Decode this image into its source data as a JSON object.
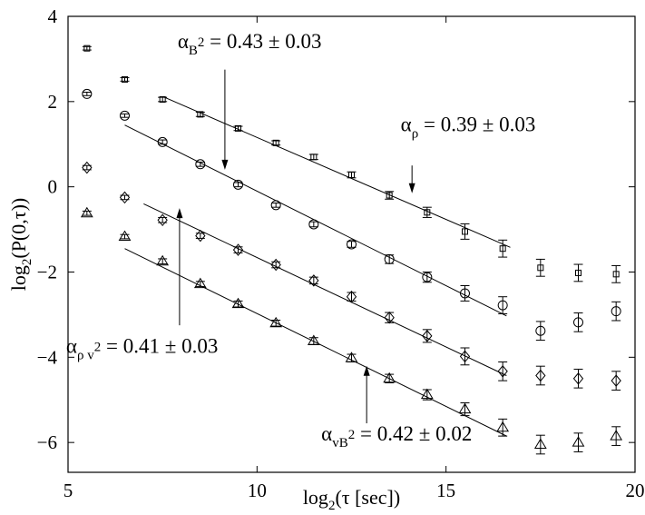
{
  "chart_data": {
    "type": "scatter",
    "title": "",
    "xlabel": "log2(τ [sec])",
    "ylabel": "log2(P(0,τ))",
    "xlim": [
      5,
      20
    ],
    "ylim": [
      -6.7,
      4
    ],
    "xticks": [
      5,
      10,
      15,
      20
    ],
    "yticks": [
      -6,
      -4,
      -2,
      0,
      2,
      4
    ],
    "grid": false,
    "legend": "none",
    "series": [
      {
        "marker": "square",
        "x": [
          5.5,
          6.5,
          7.5,
          8.5,
          9.5,
          10.5,
          11.5,
          12.5,
          13.5,
          14.5,
          15.5,
          16.5,
          17.5,
          18.5,
          19.5
        ],
        "y": [
          3.25,
          2.52,
          2.05,
          1.7,
          1.37,
          1.03,
          0.7,
          0.28,
          -0.2,
          -0.6,
          -1.05,
          -1.45,
          -1.9,
          -2.02,
          -2.05
        ],
        "err": [
          0.04,
          0.04,
          0.05,
          0.05,
          0.05,
          0.05,
          0.06,
          0.07,
          0.09,
          0.12,
          0.18,
          0.2,
          0.2,
          0.2,
          0.2
        ],
        "fit": {
          "x": [
            7.5,
            16.7
          ],
          "y": [
            2.12,
            -1.42
          ]
        }
      },
      {
        "marker": "circle",
        "x": [
          5.5,
          6.5,
          7.5,
          8.5,
          9.5,
          10.5,
          11.5,
          12.5,
          13.5,
          14.5,
          15.5,
          16.5,
          17.5,
          18.5,
          19.5
        ],
        "y": [
          2.18,
          1.67,
          1.05,
          0.53,
          0.05,
          -0.43,
          -0.88,
          -1.35,
          -1.7,
          -2.12,
          -2.5,
          -2.78,
          -3.38,
          -3.18,
          -2.92
        ],
        "err": [
          0.04,
          0.04,
          0.05,
          0.05,
          0.05,
          0.05,
          0.06,
          0.07,
          0.1,
          0.12,
          0.18,
          0.2,
          0.22,
          0.22,
          0.22
        ],
        "fit": {
          "x": [
            6.5,
            16.6
          ],
          "y": [
            1.45,
            -3.03
          ]
        }
      },
      {
        "marker": "diamond",
        "x": [
          5.5,
          6.5,
          7.5,
          8.5,
          9.5,
          10.5,
          11.5,
          12.5,
          13.5,
          14.5,
          15.5,
          16.5,
          17.5,
          18.5,
          19.5
        ],
        "y": [
          0.45,
          -0.25,
          -0.78,
          -1.15,
          -1.48,
          -1.83,
          -2.2,
          -2.58,
          -3.07,
          -3.5,
          -3.98,
          -4.33,
          -4.43,
          -4.5,
          -4.55
        ],
        "err": [
          0.05,
          0.05,
          0.06,
          0.06,
          0.07,
          0.07,
          0.08,
          0.1,
          0.12,
          0.15,
          0.2,
          0.22,
          0.22,
          0.22,
          0.22
        ],
        "fit": {
          "x": [
            7.0,
            16.6
          ],
          "y": [
            -0.4,
            -4.43
          ]
        }
      },
      {
        "marker": "triangle",
        "x": [
          5.5,
          6.5,
          7.5,
          8.5,
          9.5,
          10.5,
          11.5,
          12.5,
          13.5,
          14.5,
          15.5,
          16.5,
          17.5,
          18.5,
          19.5
        ],
        "y": [
          -0.62,
          -1.17,
          -1.75,
          -2.28,
          -2.75,
          -3.2,
          -3.62,
          -4.02,
          -4.5,
          -4.88,
          -5.22,
          -5.65,
          -6.05,
          -6.0,
          -5.85
        ],
        "err": [
          0.05,
          0.05,
          0.06,
          0.06,
          0.07,
          0.07,
          0.08,
          0.09,
          0.1,
          0.12,
          0.15,
          0.2,
          0.22,
          0.22,
          0.22
        ],
        "fit": {
          "x": [
            6.5,
            16.6
          ],
          "y": [
            -1.45,
            -5.85
          ]
        }
      }
    ],
    "annotations": [
      {
        "main": "α",
        "sub": "B",
        "sub_sup": "2",
        "tail": " = 0.43 ± 0.03",
        "text_at": [
          7.9,
          3.25
        ],
        "arrow_from": [
          9.15,
          2.75
        ],
        "arrow_to": [
          9.15,
          0.4
        ]
      },
      {
        "main": "α",
        "sub": "ρ",
        "sub_sup": "",
        "tail": " = 0.39 ± 0.03",
        "text_at": [
          13.8,
          1.3
        ],
        "arrow_from": [
          14.1,
          0.5
        ],
        "arrow_to": [
          14.1,
          -0.15
        ]
      },
      {
        "main": "α",
        "sub": "ρ v",
        "sub_sup": "2",
        "tail": " = 0.41 ± 0.03",
        "text_at": [
          4.95,
          -3.9
        ],
        "arrow_from": [
          7.95,
          -3.25
        ],
        "arrow_to": [
          7.95,
          -0.5
        ]
      },
      {
        "main": "α",
        "sub": "vB",
        "sub_sup": "2",
        "tail": " = 0.42 ± 0.02",
        "text_at": [
          11.7,
          -5.95
        ],
        "arrow_from": [
          12.9,
          -5.55
        ],
        "arrow_to": [
          12.9,
          -4.2
        ]
      }
    ]
  }
}
